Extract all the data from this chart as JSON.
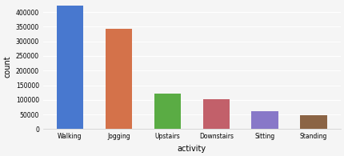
{
  "categories": [
    "Walking",
    "Jogging",
    "Upstairs",
    "Downstairs",
    "Sitting",
    "Standing"
  ],
  "values": [
    422000,
    342000,
    122000,
    102000,
    60000,
    48000
  ],
  "bar_colors": [
    "#4878cf",
    "#d4724a",
    "#5aac44",
    "#c2606a",
    "#8878c8",
    "#8b6445"
  ],
  "xlabel": "activity",
  "ylabel": "count",
  "ylim": [
    0,
    430000
  ],
  "yticks": [
    0,
    50000,
    100000,
    150000,
    200000,
    250000,
    300000,
    350000,
    400000
  ],
  "background_color": "#f5f5f5",
  "grid_color": "#ffffff",
  "bar_width": 0.55,
  "xlabel_fontsize": 7,
  "ylabel_fontsize": 7,
  "tick_fontsize": 5.5
}
